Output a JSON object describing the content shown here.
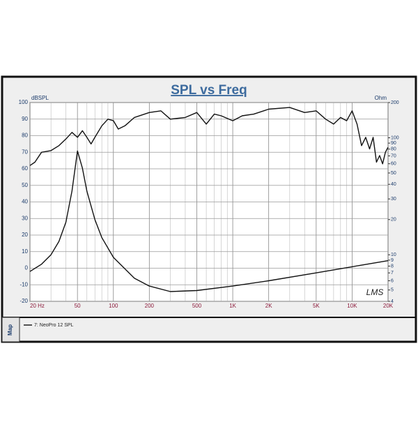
{
  "chart_data": {
    "type": "line",
    "title": "SPL vs Freq",
    "y_label": "dBSPL",
    "y2_label": "Ohm",
    "annotation": "LMS",
    "legend_tab": "Map",
    "xlog": true,
    "y2log": true,
    "grid": true,
    "xlim": [
      20,
      20000
    ],
    "ylim": [
      -20,
      100
    ],
    "y2lim": [
      4,
      200
    ],
    "xticks": [
      {
        "value": 20,
        "label": "20  Hz"
      },
      50,
      100,
      200,
      500,
      {
        "value": 1000,
        "label": "1K"
      },
      {
        "value": 2000,
        "label": "2K"
      },
      {
        "value": 5000,
        "label": "5K"
      },
      {
        "value": 10000,
        "label": "10K"
      },
      {
        "value": 20000,
        "label": "20K"
      }
    ],
    "xminor": [
      30,
      40,
      60,
      70,
      80,
      90,
      300,
      400,
      600,
      700,
      800,
      900,
      3000,
      4000,
      6000,
      7000,
      8000,
      9000
    ],
    "yticks": [
      -20,
      -10,
      0,
      10,
      20,
      30,
      40,
      50,
      60,
      70,
      80,
      90,
      100
    ],
    "y2ticks": [
      4,
      5,
      6,
      7,
      8,
      9,
      10,
      20,
      30,
      40,
      50,
      60,
      70,
      80,
      90,
      100,
      200
    ],
    "series": [
      {
        "name": "7: NeoPro 12  SPL",
        "color": "#111111",
        "x": [
          20,
          22,
          25,
          30,
          35,
          40,
          45,
          50,
          55,
          60,
          65,
          70,
          80,
          90,
          100,
          110,
          125,
          150,
          200,
          250,
          300,
          400,
          500,
          600,
          700,
          800,
          1000,
          1200,
          1500,
          2000,
          3000,
          4000,
          5000,
          6000,
          7000,
          8000,
          9000,
          10000,
          11000,
          12000,
          13000,
          14000,
          15000,
          16000,
          17000,
          18000,
          19000,
          20000
        ],
        "values": [
          62,
          64,
          70,
          71,
          74,
          78,
          82,
          79,
          83,
          79,
          75,
          79,
          86,
          90,
          89,
          84,
          86,
          91,
          94,
          95,
          90,
          91,
          94,
          87,
          93,
          92,
          89,
          92,
          93,
          96,
          97,
          94,
          95,
          90,
          87,
          91,
          89,
          95,
          87,
          74,
          79,
          72,
          79,
          64,
          68,
          63,
          70,
          73
        ]
      },
      {
        "color": "#111111",
        "axis": "y2",
        "x": [
          20,
          25,
          30,
          35,
          40,
          45,
          50,
          55,
          60,
          70,
          80,
          100,
          150,
          200,
          300,
          500,
          1000,
          2000,
          5000,
          10000,
          20000
        ],
        "values": [
          7.2,
          8.3,
          10,
          13,
          19,
          35,
          77,
          55,
          35,
          20,
          14,
          9.5,
          6.3,
          5.4,
          4.85,
          4.95,
          5.4,
          6.0,
          7.0,
          7.9,
          8.9
        ]
      }
    ]
  }
}
